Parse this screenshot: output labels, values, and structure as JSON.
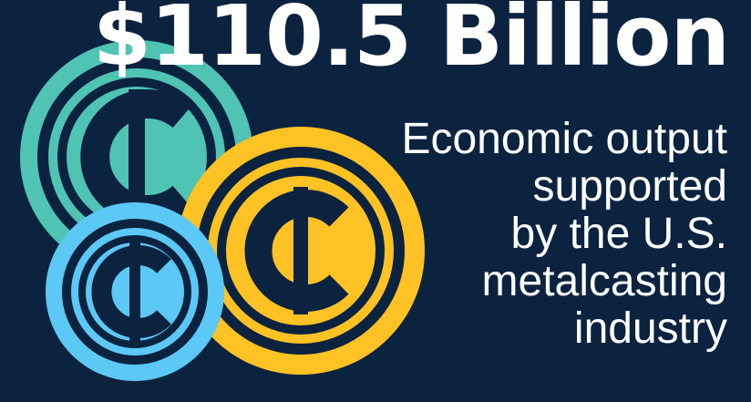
{
  "headline": "$110.5 Billion",
  "caption_lines": [
    "Economic output",
    "supported",
    "by the U.S.",
    "metalcasting",
    "industry"
  ],
  "colors": {
    "background": "#0c2340",
    "coin_teal": "#4fc3b4",
    "coin_gold": "#ffc224",
    "coin_blue": "#5bc8f5",
    "text": "#ffffff"
  },
  "icons": [
    "cent-coin-icon",
    "cent-coin-icon",
    "cent-coin-icon"
  ]
}
